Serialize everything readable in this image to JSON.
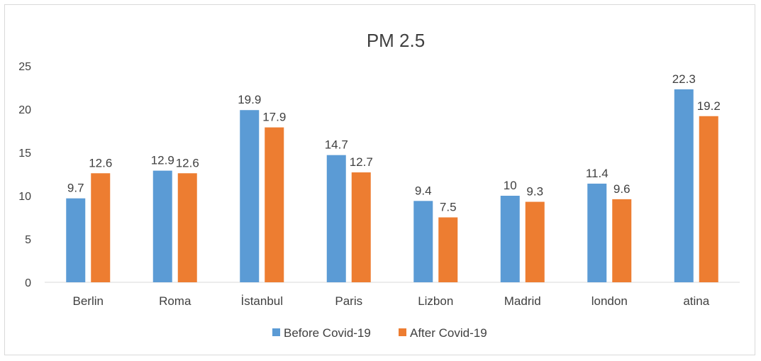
{
  "chart_data": {
    "type": "bar",
    "title": "PM 2.5",
    "xlabel": "",
    "ylabel": "",
    "ylim": [
      0,
      25
    ],
    "yticks": [
      0,
      5,
      10,
      15,
      20,
      25
    ],
    "grid": false,
    "legend_position": "bottom",
    "categories": [
      "Berlin",
      "Roma",
      "İstanbul",
      "Paris",
      "Lizbon",
      "Madrid",
      "london",
      "atina"
    ],
    "series": [
      {
        "name": "Before Covid-19",
        "color": "#5b9bd5",
        "values": [
          9.7,
          12.9,
          19.9,
          14.7,
          9.4,
          10,
          11.4,
          22.3
        ]
      },
      {
        "name": "After Covid-19",
        "color": "#ed7d31",
        "values": [
          12.6,
          12.6,
          17.9,
          12.7,
          7.5,
          9.3,
          9.6,
          19.2
        ]
      }
    ]
  }
}
